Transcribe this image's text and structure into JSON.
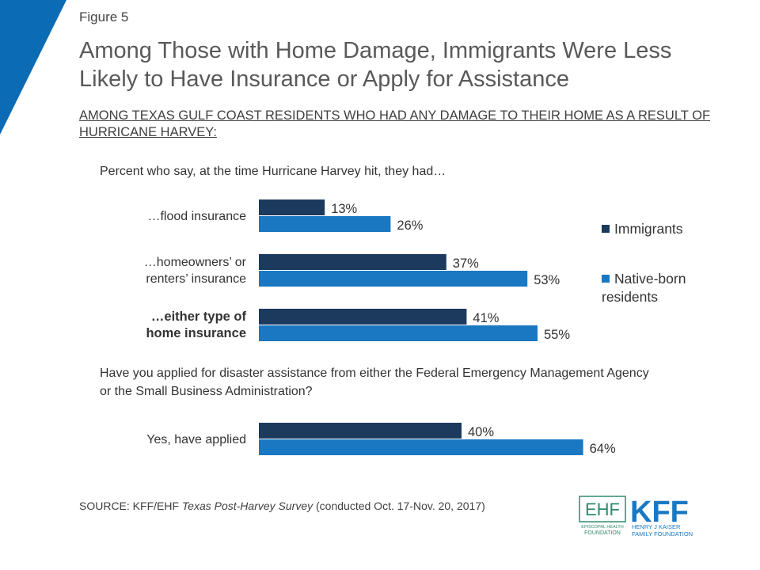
{
  "figure_label": "Figure 5",
  "title": "Among Those with Home Damage, Immigrants Were Less Likely to Have Insurance or Apply for Assistance",
  "subtitle": "AMONG TEXAS GULF COAST RESIDENTS WHO HAD ANY DAMAGE TO THEIR HOME AS A RESULT OF HURRICANE HARVEY:",
  "colors": {
    "immigrants": "#1b3a5e",
    "native": "#1a78c2",
    "accent": "#0b6bb5"
  },
  "chart_data": {
    "type": "bar",
    "orientation": "horizontal",
    "questions": [
      "Percent who say, at the time Hurricane Harvey hit, they had…",
      "Have you applied for disaster assistance from either the Federal Emergency Management Agency or the Small Business Administration?"
    ],
    "categories": [
      {
        "label": "…flood insurance",
        "bold": false
      },
      {
        "label": "…homeowners’ or renters’ insurance",
        "bold": false
      },
      {
        "label": "…either type of home insurance",
        "bold": true
      },
      {
        "label": "Yes, have applied",
        "bold": false
      }
    ],
    "series": [
      {
        "name": "Immigrants",
        "values": [
          13,
          37,
          41,
          40
        ],
        "color": "#1b3a5e"
      },
      {
        "name": "Native-born residents",
        "values": [
          26,
          53,
          55,
          64
        ],
        "color": "#1a78c2"
      }
    ],
    "value_suffix": "%",
    "xlim": [
      0,
      100
    ],
    "legend_position": "right"
  },
  "source": {
    "prefix": "SOURCE: KFF/EHF ",
    "italic": "Texas Post-Harvey Survey",
    "suffix": " (conducted Oct. 17-Nov. 20, 2017)"
  },
  "logos": {
    "ehf_mark": "EHF",
    "ehf_line1": "EPISCOPAL HEALTH",
    "ehf_line2": "FOUNDATION",
    "kff_mark": "KFF",
    "kff_line1": "HENRY J KAISER",
    "kff_line2": "FAMILY FOUNDATION"
  }
}
